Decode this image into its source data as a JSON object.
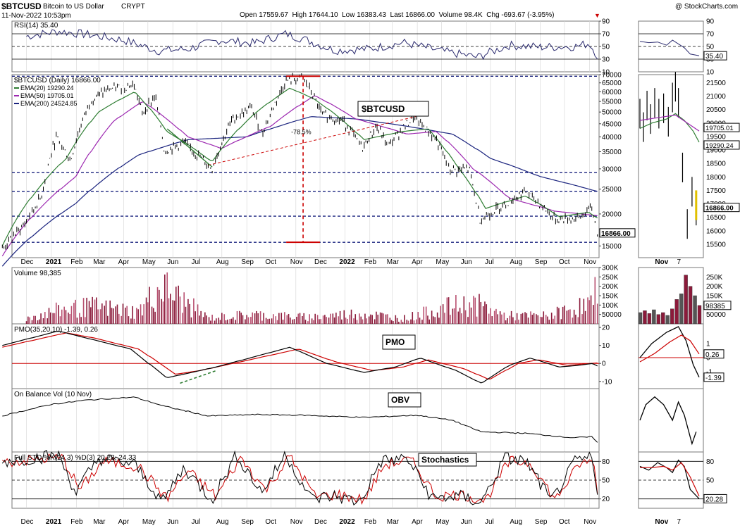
{
  "header": {
    "symbol": "$BTCUSD",
    "name": "Bitcoin to US Dollar",
    "exchange": "CRYPT",
    "datetime": "11-Nov-2022 10:53pm",
    "ohlc": "Open 17559.67  High 17644.10  Low 16383.43  Last 16866.00  Volume 98.4K  Chg -693.67 (-3.95%)",
    "watermark": "@ StockCharts.com",
    "down_color": "#cc0000"
  },
  "colors": {
    "frame": "#777777",
    "grid": "#d4d4d4",
    "navy": "#1a237e",
    "ema20": "#2e7d32",
    "ema50": "#9c27b0",
    "red": "#cc0000",
    "volume": "#8b1a3a",
    "volume_flat": "#b85070",
    "rsi_line": "#2a2a6e"
  },
  "chart_data": [
    {
      "id": "rsi",
      "type": "line",
      "title": "RSI(14) 35.40",
      "last_label": "35.40",
      "ylim": [
        10,
        90
      ],
      "ticks": [
        90,
        70,
        50,
        30,
        10
      ],
      "reference_lines": [
        70,
        50,
        30
      ],
      "series": [
        {
          "name": "RSI(14)",
          "x": [
            "2020-12-01",
            "2021-01-10",
            "2021-02-20",
            "2021-04-01",
            "2021-05-15",
            "2021-06-20",
            "2021-07-30",
            "2021-09-10",
            "2021-10-20",
            "2021-11-10",
            "2021-12-20",
            "2022-02-01",
            "2022-03-15",
            "2022-05-01",
            "2022-06-15",
            "2022-07-25",
            "2022-09-01",
            "2022-10-15",
            "2022-11-01",
            "2022-11-11"
          ],
          "values": [
            66,
            74,
            68,
            60,
            43,
            46,
            60,
            55,
            70,
            62,
            44,
            46,
            56,
            43,
            33,
            52,
            49,
            50,
            55,
            35.4
          ]
        }
      ]
    },
    {
      "id": "price",
      "type": "line",
      "title": "$BTCUSD (Daily) 16866.00",
      "label_box": "$BTCUSD",
      "last_price_label": "16866.00",
      "scale": "log",
      "ylim": [
        13500,
        70000
      ],
      "ticks": [
        70000,
        65000,
        60000,
        55000,
        50000,
        45000,
        40000,
        35000,
        30000,
        25000,
        20000,
        15000
      ],
      "horizontal_levels": [
        69000,
        29000,
        24500,
        19600,
        15500
      ],
      "annotations": [
        {
          "text": "-78.5%",
          "from": 69000,
          "to": 15500
        }
      ],
      "series": [
        {
          "name": "$BTCUSD",
          "x": [
            "2020-11-01",
            "2020-12-01",
            "2020-12-20",
            "2021-01-08",
            "2021-01-25",
            "2021-02-20",
            "2021-03-12",
            "2021-04-14",
            "2021-04-25",
            "2021-05-10",
            "2021-05-22",
            "2021-06-15",
            "2021-07-20",
            "2021-08-15",
            "2021-09-07",
            "2021-09-21",
            "2021-10-20",
            "2021-11-10",
            "2021-12-04",
            "2021-12-31",
            "2022-01-23",
            "2022-02-10",
            "2022-02-24",
            "2022-03-28",
            "2022-04-25",
            "2022-05-12",
            "2022-06-05",
            "2022-06-18",
            "2022-07-10",
            "2022-08-14",
            "2022-09-20",
            "2022-10-20",
            "2022-11-05",
            "2022-11-11"
          ],
          "values": [
            14500,
            18500,
            23500,
            40000,
            32000,
            56000,
            61000,
            64000,
            49000,
            58000,
            35000,
            38000,
            30000,
            47000,
            52000,
            41000,
            66000,
            68000,
            49000,
            46000,
            36000,
            44000,
            37000,
            47500,
            39000,
            29500,
            30000,
            19000,
            21000,
            24500,
            19000,
            19300,
            21200,
            16866
          ]
        },
        {
          "name": "EMA(20)",
          "label": "EMA(20) 19290.24",
          "x": [
            "2020-11-01",
            "2021-01-20",
            "2021-03-01",
            "2021-04-15",
            "2021-05-25",
            "2021-07-20",
            "2021-09-07",
            "2021-10-25",
            "2021-11-25",
            "2022-01-25",
            "2022-03-15",
            "2022-04-15",
            "2022-05-20",
            "2022-06-25",
            "2022-08-14",
            "2022-09-25",
            "2022-11-01",
            "2022-11-11"
          ],
          "values": [
            15000,
            33000,
            50000,
            60000,
            42000,
            32000,
            48000,
            62000,
            56000,
            39000,
            42000,
            43000,
            31000,
            21000,
            23500,
            19500,
            20300,
            19290
          ]
        },
        {
          "name": "EMA(50)",
          "label": "EMA(50) 19705.01",
          "x": [
            "2020-11-01",
            "2021-02-01",
            "2021-03-20",
            "2021-04-25",
            "2021-06-20",
            "2021-08-01",
            "2021-10-01",
            "2021-11-25",
            "2022-01-15",
            "2022-03-20",
            "2022-04-25",
            "2022-06-10",
            "2022-07-25",
            "2022-09-20",
            "2022-11-11"
          ],
          "values": [
            13700,
            28000,
            46000,
            55000,
            40000,
            36000,
            44000,
            58000,
            47000,
            41000,
            42000,
            30000,
            23000,
            20500,
            19705
          ]
        },
        {
          "name": "EMA(200)",
          "label": "EMA(200) 24524.85",
          "x": [
            "2020-11-01",
            "2021-02-01",
            "2021-04-20",
            "2021-06-20",
            "2021-09-01",
            "2021-11-20",
            "2022-01-15",
            "2022-03-20",
            "2022-05-15",
            "2022-07-01",
            "2022-09-01",
            "2022-11-11"
          ],
          "values": [
            12500,
            22000,
            34000,
            39000,
            40000,
            48000,
            47000,
            44000,
            41000,
            33000,
            28000,
            24525
          ]
        }
      ]
    },
    {
      "id": "volume",
      "type": "bar",
      "title": "Volume 98,385",
      "last_label": "98385",
      "ylim": [
        0,
        300000
      ],
      "ticks": [
        300000,
        250000,
        200000,
        150000,
        100000,
        50000
      ],
      "tick_labels": [
        "300K",
        "250K",
        "200K",
        "150K",
        "100K",
        "50000"
      ],
      "series": [
        {
          "name": "Volume",
          "x": [
            "2020-12-01",
            "2021-01-15",
            "2021-02-25",
            "2021-04-19",
            "2021-05-19",
            "2021-07-15",
            "2021-09-07",
            "2021-11-15",
            "2022-01-22",
            "2022-03-15",
            "2022-05-12",
            "2022-06-13",
            "2022-07-20",
            "2022-09-10",
            "2022-11-08",
            "2022-11-09",
            "2022-11-10",
            "2022-11-11"
          ],
          "values": [
            40000,
            110000,
            130000,
            90000,
            280000,
            45000,
            70000,
            50000,
            80000,
            40000,
            130000,
            150000,
            60000,
            60000,
            160000,
            260000,
            200000,
            98385
          ]
        }
      ]
    },
    {
      "id": "pmo",
      "type": "line",
      "title": "PMO(35,20,10) -1.39, 0.26",
      "label_box": "PMO",
      "ylim": [
        -14,
        22
      ],
      "ticks": [
        20,
        10,
        0,
        -10
      ],
      "zero_line": 0,
      "series": [
        {
          "name": "PMO",
          "x": [
            "2020-11-01",
            "2021-01-10",
            "2021-02-15",
            "2021-04-10",
            "2021-05-25",
            "2021-06-25",
            "2021-07-25",
            "2021-09-05",
            "2021-10-25",
            "2021-12-10",
            "2022-01-25",
            "2022-03-05",
            "2022-04-05",
            "2022-05-20",
            "2022-06-20",
            "2022-07-25",
            "2022-08-20",
            "2022-09-25",
            "2022-10-20",
            "2022-11-06",
            "2022-11-11"
          ],
          "values": [
            10,
            18,
            14,
            8,
            -8,
            -5,
            -2,
            3,
            9,
            0,
            -5,
            -2,
            3,
            -4,
            -11,
            -1,
            3,
            -2,
            -1,
            0,
            -1.39
          ]
        },
        {
          "name": "Signal",
          "x": [
            "2020-11-01",
            "2021-01-20",
            "2021-02-25",
            "2021-04-20",
            "2021-06-05",
            "2021-07-05",
            "2021-08-05",
            "2021-09-15",
            "2021-11-05",
            "2021-12-20",
            "2022-02-05",
            "2022-03-15",
            "2022-04-15",
            "2022-05-30",
            "2022-06-30",
            "2022-08-05",
            "2022-08-30",
            "2022-10-05",
            "2022-11-11"
          ],
          "values": [
            9,
            17,
            14,
            8,
            -6,
            -4,
            -1,
            3,
            8,
            1,
            -4,
            -2,
            2,
            -3,
            -9,
            0,
            2,
            -1,
            0.26
          ]
        }
      ]
    },
    {
      "id": "obv",
      "type": "line",
      "title": "On Balance Vol (10 Nov)",
      "label_box": "OBV",
      "series": [
        {
          "name": "OBV",
          "x": [
            "2020-11-01",
            "2021-01-01",
            "2021-02-15",
            "2021-04-15",
            "2021-05-20",
            "2021-07-15",
            "2021-09-15",
            "2021-11-10",
            "2022-01-25",
            "2022-04-01",
            "2022-05-15",
            "2022-06-20",
            "2022-08-15",
            "2022-10-10",
            "2022-11-06",
            "2022-11-11"
          ],
          "values": [
            1.6,
            3.2,
            3.8,
            4.2,
            3.0,
            1.6,
            1.8,
            1.7,
            1.4,
            1.7,
            1.0,
            -0.6,
            -0.8,
            -1.4,
            -1.3,
            -2.0
          ]
        }
      ]
    },
    {
      "id": "stoch",
      "type": "line",
      "title": "Full STO %K(14,3) %D(3) 20.28, 24.33",
      "label_box": "Stochastics",
      "last_label": "20.28",
      "ylim": [
        5,
        95
      ],
      "ticks": [
        80,
        50,
        20
      ],
      "reference_lines": [
        80,
        50,
        20
      ],
      "series": [
        {
          "name": "%K",
          "x": [
            "2020-11-01",
            "2021-01-10",
            "2021-02-01",
            "2021-03-01",
            "2021-04-15",
            "2021-05-20",
            "2021-06-15",
            "2021-07-20",
            "2021-08-20",
            "2021-09-20",
            "2021-10-20",
            "2021-11-20",
            "2021-12-20",
            "2022-01-20",
            "2022-02-15",
            "2022-03-20",
            "2022-04-20",
            "2022-05-20",
            "2022-06-20",
            "2022-07-20",
            "2022-08-15",
            "2022-09-15",
            "2022-10-15",
            "2022-11-06",
            "2022-11-11"
          ],
          "values": [
            80,
            90,
            30,
            85,
            75,
            15,
            70,
            20,
            90,
            30,
            92,
            20,
            25,
            15,
            80,
            85,
            20,
            25,
            15,
            85,
            80,
            15,
            80,
            85,
            20.28
          ]
        },
        {
          "name": "%D",
          "x": [
            "2020-11-01",
            "2021-01-15",
            "2021-02-06",
            "2021-03-06",
            "2021-04-20",
            "2021-05-25",
            "2021-06-20",
            "2021-07-25",
            "2021-08-25",
            "2021-09-25",
            "2021-10-25",
            "2021-11-25",
            "2021-12-25",
            "2022-01-25",
            "2022-02-20",
            "2022-03-25",
            "2022-04-25",
            "2022-05-25",
            "2022-06-25",
            "2022-07-25",
            "2022-08-20",
            "2022-09-20",
            "2022-10-20",
            "2022-11-08",
            "2022-11-11"
          ],
          "values": [
            78,
            86,
            34,
            80,
            72,
            20,
            65,
            24,
            85,
            34,
            88,
            24,
            27,
            18,
            75,
            82,
            24,
            27,
            18,
            80,
            78,
            18,
            76,
            80,
            24.33
          ]
        }
      ]
    }
  ],
  "x_axis": {
    "labels": [
      "Dec",
      "2021",
      "Feb",
      "Mar",
      "Apr",
      "May",
      "Jun",
      "Jul",
      "Aug",
      "Sep",
      "Oct",
      "Nov",
      "Dec",
      "2022",
      "Feb",
      "Mar",
      "Apr",
      "May",
      "Jun",
      "Jul",
      "Aug",
      "Sep",
      "Oct",
      "Nov"
    ],
    "bold": [
      "2021",
      "2022"
    ],
    "mini_labels": [
      "Nov",
      "7"
    ]
  },
  "mini": {
    "rsi_ticks": [
      90,
      70,
      50,
      30,
      10
    ],
    "rsi_last": "35.40",
    "price_ticks": [
      21500,
      21000,
      20500,
      20000,
      19500,
      19000,
      18500,
      18000,
      17500,
      17000,
      16500,
      16000,
      15500
    ],
    "price_labels": [
      "19705.01",
      "19290.24",
      "16866.00"
    ],
    "vol_ticks": [
      "250K",
      "200K",
      "150K",
      "100K",
      "50000"
    ],
    "vol_last": "98385",
    "pmo_ticks": [
      1,
      0,
      -1
    ],
    "pmo_labels": [
      "0.26",
      "-1.39"
    ],
    "sto_ticks": [
      80,
      50,
      20
    ],
    "sto_last": "20.28"
  }
}
